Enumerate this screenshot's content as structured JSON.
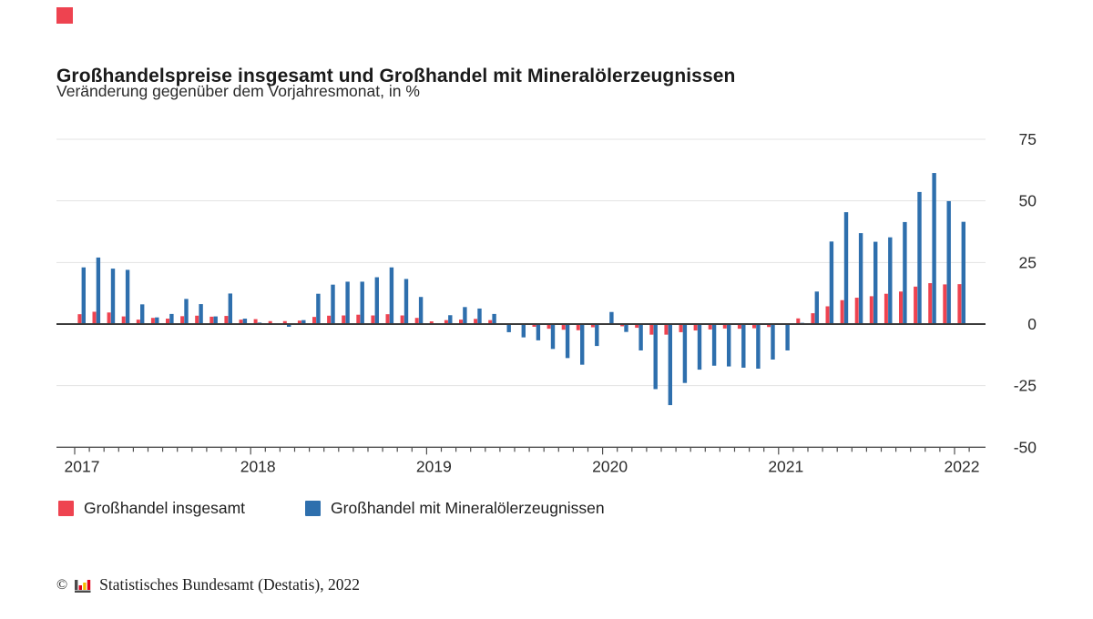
{
  "page": {
    "background": "#ffffff"
  },
  "brand": {
    "mark_color": "#ee4350"
  },
  "header": {
    "title": "Großhandelspreise insgesamt und Großhandel mit Mineralölerzeugnissen",
    "subtitle": "Veränderung gegenüber dem Vorjahresmonat, in %"
  },
  "chart_data": {
    "type": "bar",
    "unit": "%",
    "title": "Großhandelspreise insgesamt und Großhandel mit Mineralölerzeugnissen",
    "subtitle": "Veränderung gegenüber dem Vorjahresmonat, in %",
    "categories": [
      "2017-01",
      "2017-02",
      "2017-03",
      "2017-04",
      "2017-05",
      "2017-06",
      "2017-07",
      "2017-08",
      "2017-09",
      "2017-10",
      "2017-11",
      "2017-12",
      "2018-01",
      "2018-02",
      "2018-03",
      "2018-04",
      "2018-05",
      "2018-06",
      "2018-07",
      "2018-08",
      "2018-09",
      "2018-10",
      "2018-11",
      "2018-12",
      "2019-01",
      "2019-02",
      "2019-03",
      "2019-04",
      "2019-05",
      "2019-06",
      "2019-07",
      "2019-08",
      "2019-09",
      "2019-10",
      "2019-11",
      "2019-12",
      "2020-01",
      "2020-02",
      "2020-03",
      "2020-04",
      "2020-05",
      "2020-06",
      "2020-07",
      "2020-08",
      "2020-09",
      "2020-10",
      "2020-11",
      "2020-12",
      "2021-01",
      "2021-02",
      "2021-03",
      "2021-04",
      "2021-05",
      "2021-06",
      "2021-07",
      "2021-08",
      "2021-09",
      "2021-10",
      "2021-11",
      "2021-12",
      "2022-01"
    ],
    "series": [
      {
        "name": "Großhandel insgesamt",
        "color": "#ee4350",
        "values": [
          4.0,
          5.0,
          4.7,
          3.1,
          1.8,
          2.5,
          2.2,
          3.2,
          3.4,
          3.0,
          3.3,
          1.8,
          2.0,
          1.2,
          1.2,
          1.4,
          2.9,
          3.4,
          3.5,
          3.8,
          3.5,
          4.0,
          3.5,
          2.5,
          1.1,
          1.6,
          1.8,
          2.1,
          1.6,
          0.3,
          -0.1,
          -1.1,
          -1.9,
          -2.3,
          -2.5,
          -1.3,
          -0.2,
          -0.9,
          -1.5,
          -4.3,
          -4.3,
          -3.3,
          -2.6,
          -2.2,
          -1.8,
          -1.9,
          -1.7,
          -1.2,
          0.0,
          2.3,
          4.4,
          7.2,
          9.7,
          10.7,
          11.3,
          12.3,
          13.2,
          15.2,
          16.6,
          16.1,
          16.2
        ]
      },
      {
        "name": "Großhandel mit Mineralölerzeugnissen",
        "color": "#2e6fad",
        "values": [
          23.0,
          27.0,
          22.5,
          22.0,
          8.0,
          2.7,
          4.1,
          10.2,
          8.1,
          3.1,
          12.4,
          2.2,
          0.6,
          -0.3,
          -1.1,
          1.6,
          12.3,
          16.0,
          17.2,
          17.2,
          19.0,
          23.0,
          18.3,
          11.0,
          0.0,
          3.6,
          6.9,
          6.3,
          4.1,
          -3.3,
          -5.4,
          -6.6,
          -10.1,
          -13.8,
          -16.5,
          -8.9,
          4.9,
          -3.2,
          -10.7,
          -26.4,
          -32.9,
          -23.9,
          -18.5,
          -16.9,
          -17.2,
          -17.7,
          -18.1,
          -14.4,
          -10.7,
          0.5,
          13.2,
          33.5,
          45.4,
          36.9,
          33.4,
          35.2,
          41.4,
          53.6,
          61.3,
          49.9,
          41.5
        ]
      }
    ],
    "x_tick_labels": [
      "2017",
      "2018",
      "2019",
      "2020",
      "2021",
      "2022"
    ],
    "y_ticks": [
      75,
      50,
      25,
      0,
      -25,
      -50
    ],
    "ylim": [
      -50,
      75
    ],
    "grid": true,
    "legend_position": "bottom",
    "axis_color": "#3b3b3b",
    "baseline_color": "#4f4f4f",
    "grid_color": "#e3e3e3",
    "tick_label_color": "#2b2b2b"
  },
  "legend": {
    "items": [
      {
        "label": "Großhandel insgesamt",
        "color": "#ee4350"
      },
      {
        "label": "Großhandel mit Mineralölerzeugnissen",
        "color": "#2e6fad"
      }
    ]
  },
  "footer": {
    "copyright": "©",
    "source": "Statistisches Bundesamt (Destatis), 2022",
    "logo_colors": [
      "#4a4a4a",
      "#e2001a",
      "#f5bb00"
    ]
  }
}
